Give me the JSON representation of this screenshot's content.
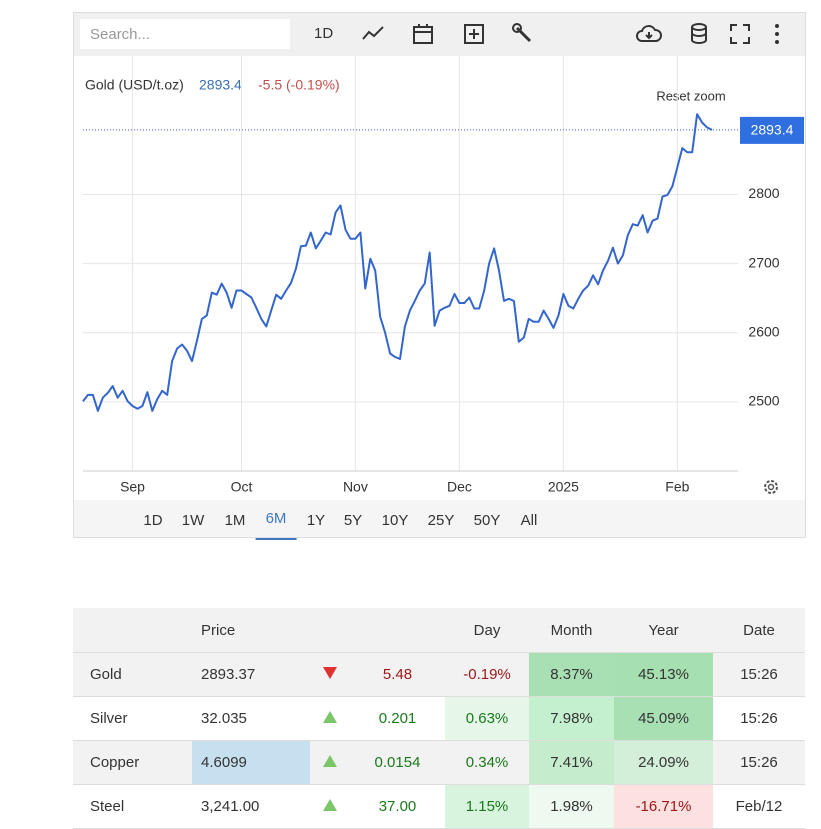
{
  "toolbar": {
    "search": "Search...",
    "interval": "1D"
  },
  "chart_data": {
    "type": "line",
    "title": "Gold (USD/t.oz)",
    "change": "-5.5 (-0.19%)",
    "reset_zoom": "Reset zoom",
    "color": "#3366cc",
    "change_color": "#c0504d",
    "tag_color": "#2f6fe0",
    "grid": true,
    "values": [
      2501,
      2510,
      2510,
      2487,
      2506,
      2513,
      2523,
      2506,
      2516,
      2501,
      2494,
      2490,
      2494,
      2514,
      2487,
      2504,
      2516,
      2510,
      2559,
      2577,
      2583,
      2574,
      2559,
      2588,
      2620,
      2625,
      2658,
      2655,
      2671,
      2658,
      2636,
      2661,
      2661,
      2656,
      2651,
      2636,
      2620,
      2609,
      2632,
      2655,
      2649,
      2661,
      2672,
      2693,
      2725,
      2726,
      2745,
      2722,
      2733,
      2745,
      2742,
      2774,
      2784,
      2749,
      2736,
      2736,
      2745,
      2664,
      2707,
      2690,
      2623,
      2600,
      2570,
      2565,
      2562,
      2609,
      2632,
      2646,
      2661,
      2671,
      2716,
      2610,
      2632,
      2636,
      2639,
      2656,
      2643,
      2643,
      2651,
      2635,
      2635,
      2661,
      2700,
      2722,
      2690,
      2646,
      2649,
      2646,
      2587,
      2593,
      2620,
      2616,
      2616,
      2632,
      2620,
      2607,
      2625,
      2656,
      2639,
      2635,
      2649,
      2661,
      2668,
      2683,
      2670,
      2690,
      2704,
      2723,
      2700,
      2712,
      2741,
      2757,
      2755,
      2770,
      2745,
      2762,
      2765,
      2797,
      2799,
      2812,
      2839,
      2867,
      2861,
      2861,
      2916,
      2904,
      2897,
      2893.4
    ],
    "xlim": [
      0,
      127
    ],
    "xticks": [
      {
        "value": 10,
        "label": "Sep"
      },
      {
        "value": 32,
        "label": "Oct"
      },
      {
        "value": 55,
        "label": "Nov"
      },
      {
        "value": 76,
        "label": "Dec"
      },
      {
        "value": 97,
        "label": "2025"
      },
      {
        "value": 120,
        "label": "Feb"
      }
    ],
    "ylim": [
      2400,
      2980
    ],
    "yticks": [
      2500,
      2600,
      2700,
      2800
    ]
  },
  "ranges": [
    "1D",
    "1W",
    "1M",
    "6M",
    "1Y",
    "5Y",
    "10Y",
    "25Y",
    "50Y",
    "All"
  ],
  "table": {
    "header": [
      "Price",
      "Day",
      "Month",
      "Year",
      "Date"
    ],
    "rows": [
      [
        "Gold",
        "2893.37",
        "5.48",
        "-0.19%",
        "8.37%",
        "45.13%",
        "15:26"
      ],
      [
        "Silver",
        "32.035",
        "0.201",
        "0.63%",
        "7.98%",
        "45.09%",
        "15:26"
      ],
      [
        "Copper",
        "4.6099",
        "0.0154",
        "0.34%",
        "7.41%",
        "24.09%",
        "15:26"
      ],
      [
        "Steel",
        "3,241.00",
        "37.00",
        "1.15%",
        "1.98%",
        "-16.71%",
        "Feb/12"
      ]
    ]
  }
}
